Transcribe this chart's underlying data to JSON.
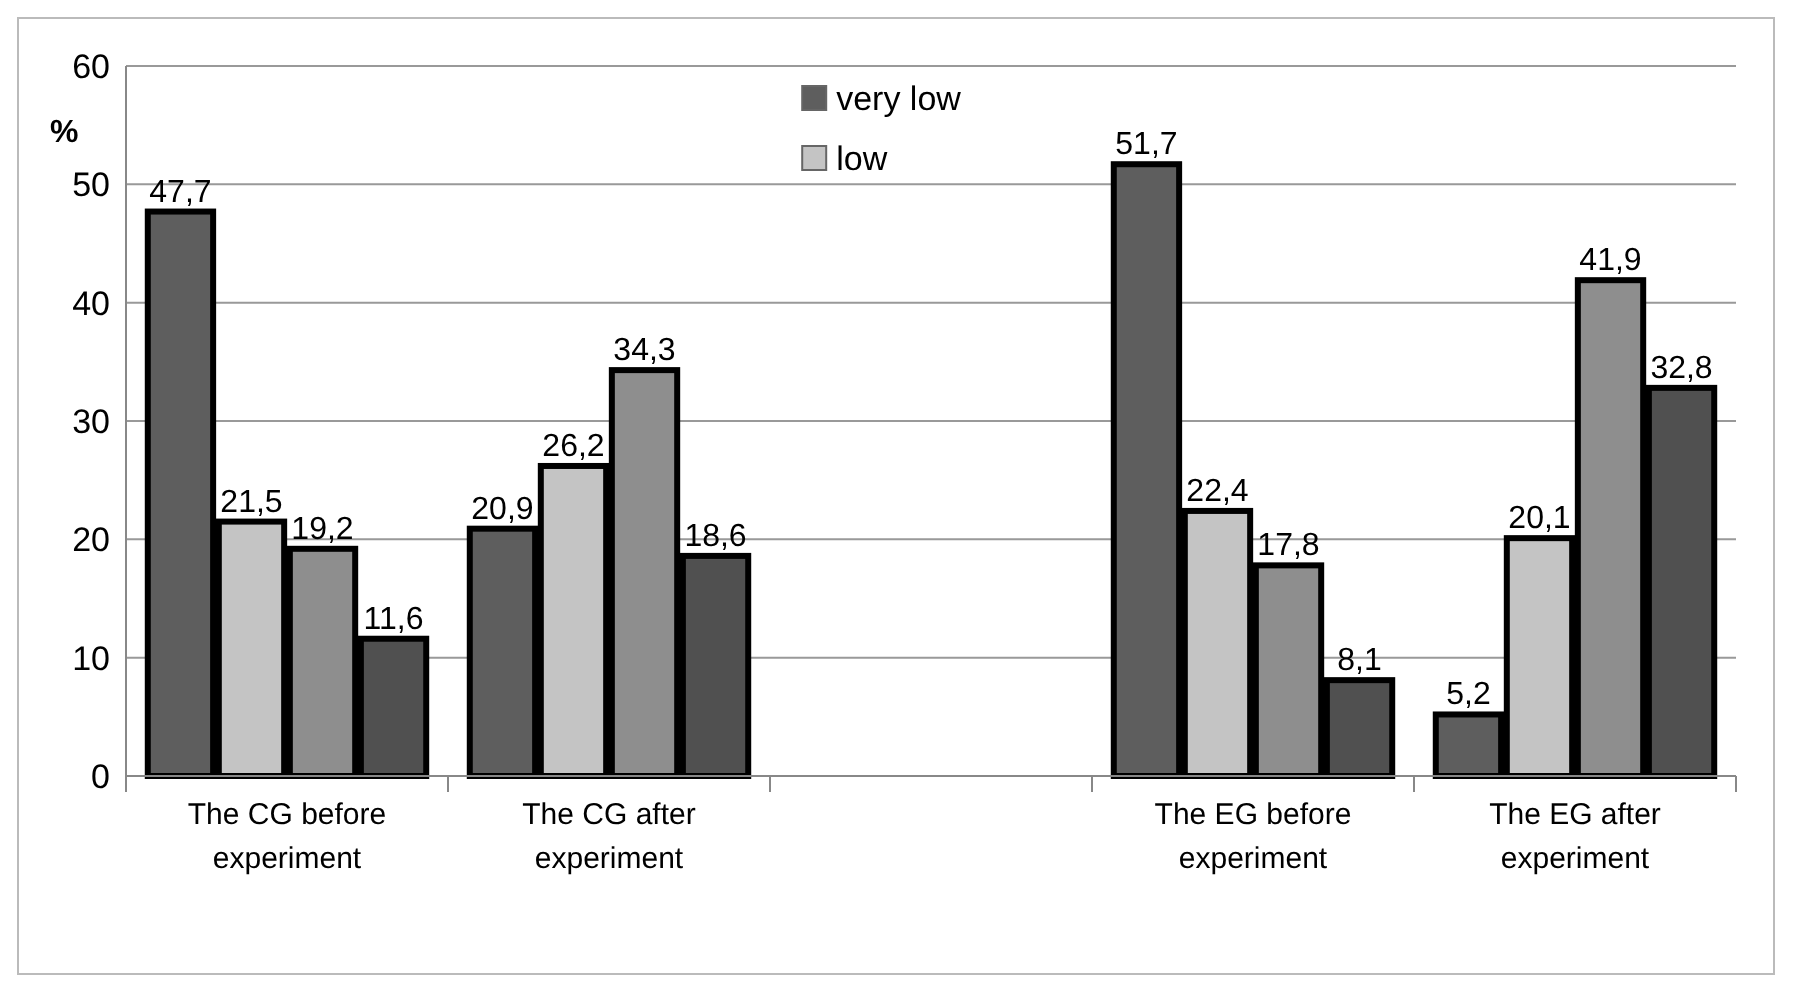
{
  "chart_data": {
    "type": "bar",
    "ylabel": "%",
    "categories": [
      "The CG before experiment",
      "The CG after experiment",
      null,
      "The EG before experiment",
      "The EG after experiment"
    ],
    "series": [
      {
        "name": "very low",
        "color": "#5e5e5e",
        "values": [
          47.7,
          20.9,
          null,
          51.7,
          5.2
        ],
        "value_labels": [
          "47,7",
          "20,9",
          null,
          "51,7",
          "5,2"
        ]
      },
      {
        "name": "low",
        "color": "#c4c4c4",
        "values": [
          21.5,
          26.2,
          null,
          22.4,
          20.1
        ],
        "value_labels": [
          "21,5",
          "26,2",
          null,
          "22,4",
          "20,1"
        ]
      },
      {
        "color": "#8e8e8e",
        "values": [
          19.2,
          34.3,
          null,
          17.8,
          41.9
        ],
        "value_labels": [
          "19,2",
          "34,3",
          null,
          "17,8",
          "41,9"
        ]
      },
      {
        "color": "#505050",
        "values": [
          11.6,
          18.6,
          null,
          8.1,
          32.8
        ],
        "value_labels": [
          "11,6",
          "18,6",
          null,
          "8,1",
          "32,8"
        ]
      }
    ],
    "ylim": [
      0,
      60
    ],
    "yticks": [
      0,
      10,
      20,
      30,
      40,
      50,
      60
    ],
    "grid": "y",
    "legend": "top"
  }
}
